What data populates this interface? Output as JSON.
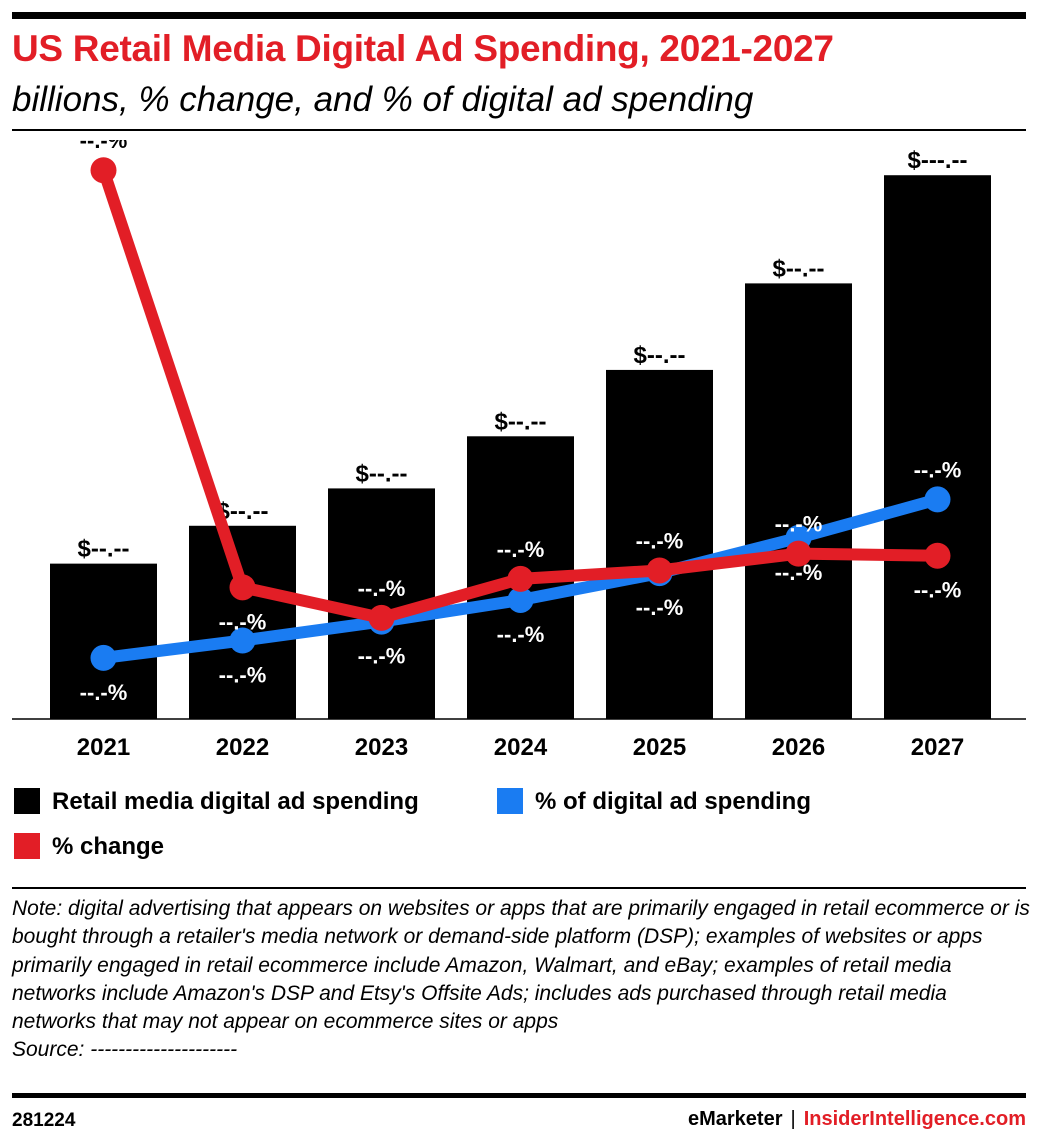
{
  "header": {
    "title": "US Retail Media Digital Ad Spending, 2021-2027",
    "subtitle": "billions, % change, and % of digital ad spending"
  },
  "colors": {
    "title": "#e21e26",
    "bar": "#000000",
    "pct_change": "#e21e26",
    "pct_digital": "#1a7cf2"
  },
  "chart_data": {
    "type": "bar",
    "categories": [
      "2021",
      "2022",
      "2023",
      "2024",
      "2025",
      "2026",
      "2027"
    ],
    "bar_labels": [
      "$--.--",
      "$--.--",
      "$--.--",
      "$--.--",
      "$--.--",
      "$--.--",
      "$---.--"
    ],
    "series": [
      {
        "name": "Retail media digital ad spending",
        "type": "bar",
        "values": [
          31.6,
          39.3,
          46.9,
          57.5,
          71.0,
          88.6,
          110.6
        ]
      },
      {
        "name": "% change",
        "type": "line",
        "values": [
          104.2,
          25.0,
          19.2,
          26.6,
          28.2,
          31.4,
          31.0
        ],
        "labels": [
          "--.-%",
          "--.-%",
          "--.-%",
          "--.-%",
          "--.-%",
          "--.-%",
          "--.-%"
        ]
      },
      {
        "name": "% of digital ad spending",
        "type": "line",
        "values": [
          11.6,
          14.9,
          18.5,
          22.6,
          27.7,
          34.4,
          41.7
        ],
        "labels": [
          "--.-%",
          "--.-%",
          "--.-%",
          "--.-%",
          "--.-%",
          "--.-%",
          "--.-%"
        ]
      }
    ],
    "legend": [
      "Retail media digital ad spending",
      "% of digital ad spending",
      "% change"
    ],
    "legend_position": "bottom",
    "grid": false
  },
  "note": "Note: digital advertising that appears on websites or apps that are primarily engaged in retail ecommerce or is bought through a retailer's media network or demand-side platform (DSP); examples of websites or apps primarily engaged in retail ecommerce include Amazon, Walmart, and eBay; examples of retail media networks include Amazon's DSP and Etsy's Offsite Ads; includes ads purchased through retail media networks that may not appear on ecommerce sites or apps",
  "source": "Source: ---------------------",
  "footer": {
    "chart_id": "281224",
    "brand": "eMarketer",
    "separator": "|",
    "site": "InsiderIntelligence.com"
  }
}
